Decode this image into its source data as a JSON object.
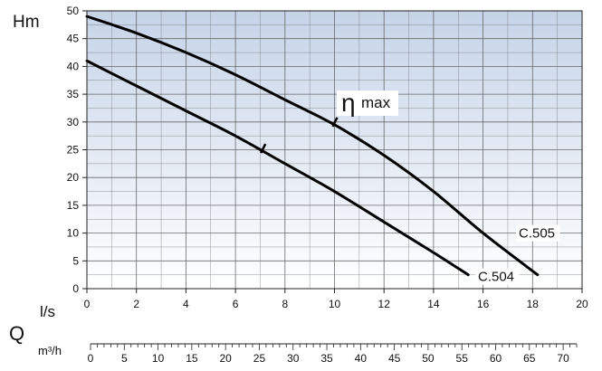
{
  "chart_data": {
    "type": "line",
    "ylabel": "Hm",
    "xlabel": "l/s",
    "quantity_label": "Q",
    "secondary_axis_label": "m³/h",
    "annotation": {
      "symbol": "η",
      "text": "max"
    },
    "xlim": [
      0,
      20
    ],
    "ylim": [
      0,
      50
    ],
    "x_ticks": [
      0,
      2,
      4,
      6,
      8,
      10,
      12,
      14,
      16,
      18,
      20
    ],
    "y_ticks": [
      0,
      5,
      10,
      15,
      20,
      25,
      30,
      35,
      40,
      45,
      50
    ],
    "secondary_xlim": [
      0,
      72
    ],
    "secondary_ticks": [
      0,
      5,
      10,
      15,
      20,
      25,
      30,
      35,
      40,
      45,
      50,
      55,
      60,
      65,
      70
    ],
    "grid": true,
    "series": [
      {
        "name": "C.505",
        "x": [
          0,
          2,
          4,
          6,
          8,
          10,
          12,
          14,
          16,
          18.2
        ],
        "y": [
          49,
          46,
          42.5,
          38.5,
          34,
          29.5,
          24,
          17.5,
          10,
          2.5
        ],
        "eta_max_x": 10
      },
      {
        "name": "C.504",
        "x": [
          0,
          2,
          4,
          6,
          8,
          10,
          12,
          14,
          15.4
        ],
        "y": [
          41,
          36.5,
          32,
          27.5,
          22.5,
          17.5,
          12,
          6.5,
          2.5
        ],
        "eta_max_x": 7.1
      }
    ],
    "colors": {
      "gradient_top": "#c6d4e8",
      "gradient_bottom": "#ffffff",
      "grid": "#555555",
      "line": "#000000"
    }
  }
}
